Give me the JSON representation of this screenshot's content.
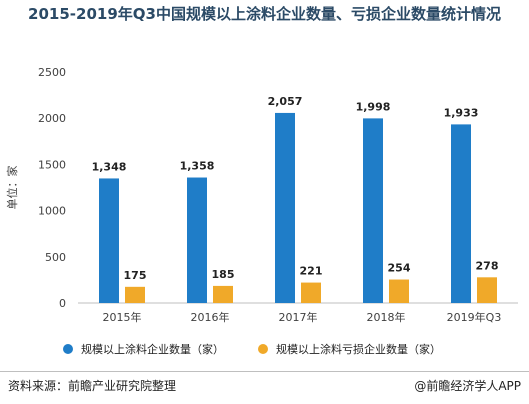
{
  "chart_data": {
    "type": "bar",
    "title": "2015-2019年Q3中国规模以上涂料企业数量、亏损企业数量统计情况",
    "ylabel": "单位：家",
    "ylim": [
      0,
      2500
    ],
    "yticks": [
      0,
      500,
      1000,
      1500,
      2000,
      2500
    ],
    "categories": [
      "2015年",
      "2016年",
      "2017年",
      "2018年",
      "2019年Q3"
    ],
    "series": [
      {
        "name": "规模以上涂料企业数量（家）",
        "color": "#1f7dc8",
        "values": [
          1348,
          1358,
          2057,
          1998,
          1933
        ],
        "labels": [
          "1,348",
          "1,358",
          "2,057",
          "1,998",
          "1,933"
        ]
      },
      {
        "name": "规模以上涂料亏损企业数量（家）",
        "color": "#f0a929",
        "values": [
          175,
          185,
          221,
          254,
          278
        ],
        "labels": [
          "175",
          "185",
          "221",
          "254",
          "278"
        ]
      }
    ],
    "grid": false,
    "legend": "bottom"
  },
  "footer": {
    "source": "资料来源：前瞻产业研究院整理",
    "brand": "@前瞻经济学人APP"
  }
}
